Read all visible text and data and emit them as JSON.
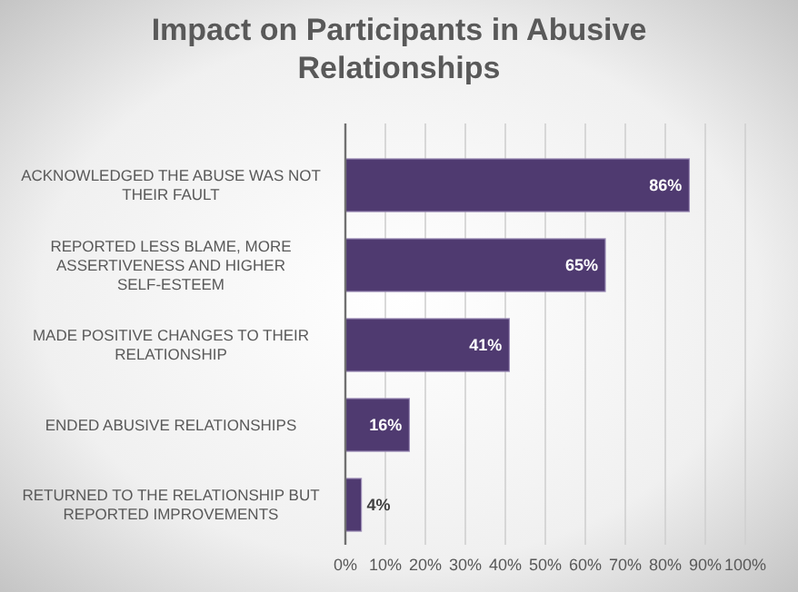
{
  "chart_data": {
    "type": "bar",
    "orientation": "horizontal",
    "title": "Impact on Participants in Abusive Relationships",
    "categories": [
      "ACKNOWLEDGED THE ABUSE WAS NOT THEIR FAULT",
      "REPORTED LESS BLAME, MORE ASSERTIVENESS AND HIGHER SELF-ESTEEM",
      "MADE POSITIVE CHANGES TO THEIR RELATIONSHIP",
      "ENDED ABUSIVE RELATIONSHIPS",
      "RETURNED TO THE RELATIONSHIP BUT REPORTED IMPROVEMENTS"
    ],
    "values": [
      86,
      65,
      41,
      16,
      4
    ],
    "value_labels": [
      "86%",
      "65%",
      "41%",
      "16%",
      "4%"
    ],
    "color": "#4f3a70",
    "xlim": [
      0,
      100
    ],
    "xticks": [
      {
        "value": 0,
        "label": "0%"
      },
      {
        "value": 10,
        "label": "10%"
      },
      {
        "value": 20,
        "label": "20%"
      },
      {
        "value": 30,
        "label": "30%"
      },
      {
        "value": 40,
        "label": "40%"
      },
      {
        "value": 50,
        "label": "50%"
      },
      {
        "value": 60,
        "label": "60%"
      },
      {
        "value": 70,
        "label": "70%"
      },
      {
        "value": 80,
        "label": "80%"
      },
      {
        "value": 90,
        "label": "90%"
      },
      {
        "value": 100,
        "label": "100%"
      }
    ],
    "grid": "x"
  }
}
